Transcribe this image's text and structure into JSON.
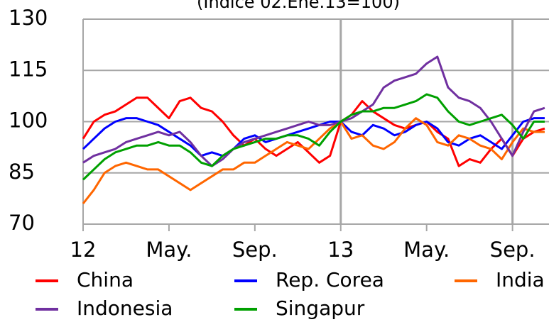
{
  "chart_data": {
    "type": "line",
    "title": "(Índice 02.Ene.13=100)",
    "x": [
      0,
      0.5,
      1,
      1.5,
      2,
      2.5,
      3,
      3.5,
      4,
      4.5,
      5,
      5.5,
      6,
      6.5,
      7,
      7.5,
      8,
      8.5,
      9,
      9.5,
      10,
      10.5,
      11,
      11.5,
      12,
      12.5,
      13,
      13.5,
      14,
      14.5,
      15,
      15.5,
      16,
      16.5,
      17,
      17.5,
      18,
      18.5,
      19,
      19.5,
      20,
      20.5,
      21,
      21.5
    ],
    "series": [
      {
        "name": "China",
        "color": "#ff0000",
        "values": [
          95,
          100,
          102,
          103,
          105,
          107,
          107,
          104,
          101,
          106,
          107,
          104,
          103,
          100,
          96,
          93,
          95,
          92,
          90,
          92,
          94,
          91,
          88,
          90,
          100,
          102,
          106,
          103,
          101,
          99,
          98,
          99,
          100,
          97,
          95,
          87,
          89,
          88,
          92,
          95,
          90,
          95,
          97,
          98
        ]
      },
      {
        "name": "Rep. Corea",
        "color": "#0000ff",
        "values": [
          92,
          95,
          98,
          100,
          101,
          101,
          100,
          99,
          97,
          95,
          93,
          90,
          91,
          90,
          92,
          95,
          96,
          94,
          95,
          96,
          97,
          98,
          99,
          100,
          100,
          97,
          96,
          99,
          98,
          96,
          97,
          99,
          100,
          98,
          94,
          93,
          95,
          96,
          94,
          92,
          96,
          100,
          101,
          101
        ]
      },
      {
        "name": "India",
        "color": "#ff6600",
        "values": [
          76,
          80,
          85,
          87,
          88,
          87,
          86,
          86,
          84,
          82,
          80,
          82,
          84,
          86,
          86,
          88,
          88,
          90,
          92,
          94,
          93,
          92,
          95,
          98,
          100,
          95,
          96,
          93,
          92,
          94,
          98,
          101,
          99,
          94,
          93,
          96,
          95,
          93,
          92,
          89,
          94,
          98,
          97,
          97
        ]
      },
      {
        "name": "Indonesia",
        "color": "#7030a0",
        "values": [
          88,
          90,
          91,
          92,
          94,
          95,
          96,
          97,
          96,
          97,
          94,
          90,
          87,
          89,
          92,
          94,
          95,
          96,
          97,
          98,
          99,
          100,
          99,
          99,
          100,
          101,
          103,
          105,
          110,
          112,
          113,
          114,
          117,
          119,
          110,
          107,
          106,
          104,
          100,
          95,
          90,
          97,
          103,
          104
        ]
      },
      {
        "name": "Singapur",
        "color": "#00a000",
        "values": [
          83,
          86,
          89,
          91,
          92,
          93,
          93,
          94,
          93,
          93,
          91,
          88,
          87,
          90,
          92,
          93,
          94,
          95,
          95,
          96,
          96,
          95,
          93,
          97,
          100,
          102,
          103,
          103,
          104,
          104,
          105,
          106,
          108,
          107,
          103,
          100,
          99,
          100,
          101,
          102,
          99,
          95,
          100,
          100
        ]
      }
    ],
    "xlim": [
      0,
      21.7
    ],
    "xticks": [
      {
        "value": 0,
        "label": "12"
      },
      {
        "value": 4,
        "label": "May."
      },
      {
        "value": 8,
        "label": "Sep."
      },
      {
        "value": 12,
        "label": "13"
      },
      {
        "value": 16,
        "label": "May."
      },
      {
        "value": 20,
        "label": "Sep."
      }
    ],
    "ylim": [
      70,
      130
    ],
    "yticks": [
      70,
      85,
      100,
      115,
      130
    ],
    "grid": true,
    "vlines": [
      12,
      20
    ]
  }
}
